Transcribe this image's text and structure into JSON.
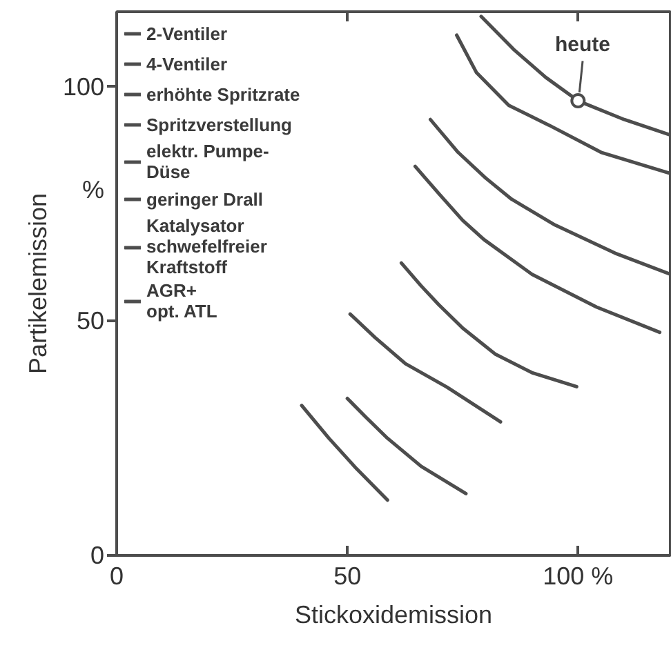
{
  "chart_data": {
    "type": "line",
    "xlabel": "Stickoxidemission",
    "ylabel": "Partikelemission",
    "xlim": [
      0,
      120
    ],
    "ylim": [
      0,
      116
    ],
    "xticks": [
      0,
      50,
      {
        "value": 100,
        "label": "100 %"
      }
    ],
    "yticks": [
      0,
      50,
      100
    ],
    "grid": false,
    "legend": "top left",
    "marker": "none",
    "line_style": "solid",
    "annotations": [
      "%",
      {
        "text": "heute",
        "x": 100,
        "y": 97
      }
    ],
    "series": [
      {
        "name": "2-Ventiler",
        "color": "#4d4d4d",
        "x": [
          79,
          86,
          93,
          100,
          110,
          120
        ],
        "values": [
          115,
          108,
          102,
          97,
          93,
          89.7
        ]
      },
      {
        "name": "4-Ventiler",
        "color": "#4d4d4d",
        "x": [
          73.7,
          78,
          85,
          93.7,
          105,
          120
        ],
        "values": [
          111,
          103,
          96,
          91.8,
          86,
          81.5
        ]
      },
      {
        "name": "erhöhte Spritzrate",
        "color": "#4d4d4d",
        "x": [
          68,
          74,
          80,
          85.6,
          95,
          108,
          120
        ],
        "values": [
          93,
          86,
          80.5,
          76,
          70.5,
          64.5,
          60
        ]
      },
      {
        "name": "Spritzverstellung",
        "color": "#4d4d4d",
        "x": [
          64.7,
          70,
          75,
          79.6,
          90,
          104,
          117.7
        ],
        "values": [
          83,
          77,
          71.5,
          67.4,
          60,
          53,
          47.6
        ]
      },
      {
        "name": "elektr. Pumpe-\nDüse",
        "color": "#4d4d4d",
        "x": [
          61.7,
          66,
          69.8,
          75,
          82,
          90,
          99.7
        ],
        "values": [
          62.4,
          57.5,
          53.5,
          48.5,
          43,
          39,
          36
        ]
      },
      {
        "name": "geringer Drall",
        "color": "#4d4d4d",
        "x": [
          50.6,
          56,
          62.6,
          71.6,
          83.2
        ],
        "values": [
          51.5,
          46.5,
          40.9,
          35.9,
          28.5
        ]
      },
      {
        "name": "Katalysator\nschwefelfreier\nKraftstoff",
        "color": "#4d4d4d",
        "x": [
          50,
          54,
          58.7,
          66,
          75.7
        ],
        "values": [
          33.5,
          29.5,
          25,
          19,
          13.2
        ]
      },
      {
        "name": "AGR+\nopt. ATL",
        "color": "#4d4d4d",
        "x": [
          40.1,
          46,
          52,
          58.7
        ],
        "values": [
          32,
          25,
          18.5,
          11.8
        ]
      }
    ]
  }
}
